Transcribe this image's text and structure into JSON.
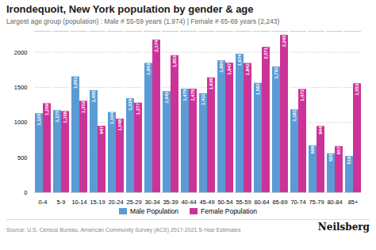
{
  "chart_data": {
    "type": "bar",
    "title": "Irondequoit, New York population by gender & age",
    "subtitle": "Largest age group (population) : Male # 55-59 years (1,974) | Female # 65-69 years (2,243)",
    "annotations": [
      "Source: U.S. Census Bureau, American Community Survey (ACS) 2017-2021 5-Year Estimates",
      "Neilsberg"
    ],
    "categories": [
      "0-4",
      "5-9",
      "10-14",
      "15-19",
      "20-24",
      "25-29",
      "30-34",
      "35-39",
      "40-44",
      "45-49",
      "50-54",
      "55-59",
      "60-64",
      "65-69",
      "70-74",
      "75-79",
      "80-84",
      "85+"
    ],
    "series": [
      {
        "name": "Male Population",
        "color": "#5b9bd5",
        "values": [
          1125,
          1170,
          1651,
          1455,
          1144,
          1339,
          1843,
          1441,
          1475,
          1411,
          1880,
          1974,
          1560,
          1791,
          1181,
          669,
          555,
          516
        ],
        "value_labels": [
          "1,125",
          "1,170",
          "1,651",
          "1,455",
          "1,144",
          "1,339",
          "1,843",
          "1,441",
          "1,475",
          "1,411",
          "1,880",
          "1,974",
          "1,560",
          "1,791",
          "1,181",
          "669",
          "555",
          "516"
        ]
      },
      {
        "name": "Female Population",
        "color": "#cc3399",
        "values": [
          1269,
          1158,
          1303,
          947,
          1048,
          1277,
          2174,
          1953,
          1475,
          1636,
          1847,
          1842,
          2071,
          2243,
          1472,
          944,
          657,
          1553
        ],
        "value_labels": [
          "1,269",
          "1,158",
          "1,303",
          "947",
          "1,048",
          "1,277",
          "2,174",
          "1,953",
          "1,475",
          "1,636",
          "1,847",
          "1,842",
          "2,071",
          "2,243",
          "1,472",
          "944",
          "657",
          "1,553"
        ]
      }
    ],
    "ylim": [
      0,
      2300
    ],
    "yticks": [
      0,
      500,
      1000,
      1500,
      2000
    ],
    "grid": true,
    "legend": "bottom",
    "data_labels": true
  }
}
